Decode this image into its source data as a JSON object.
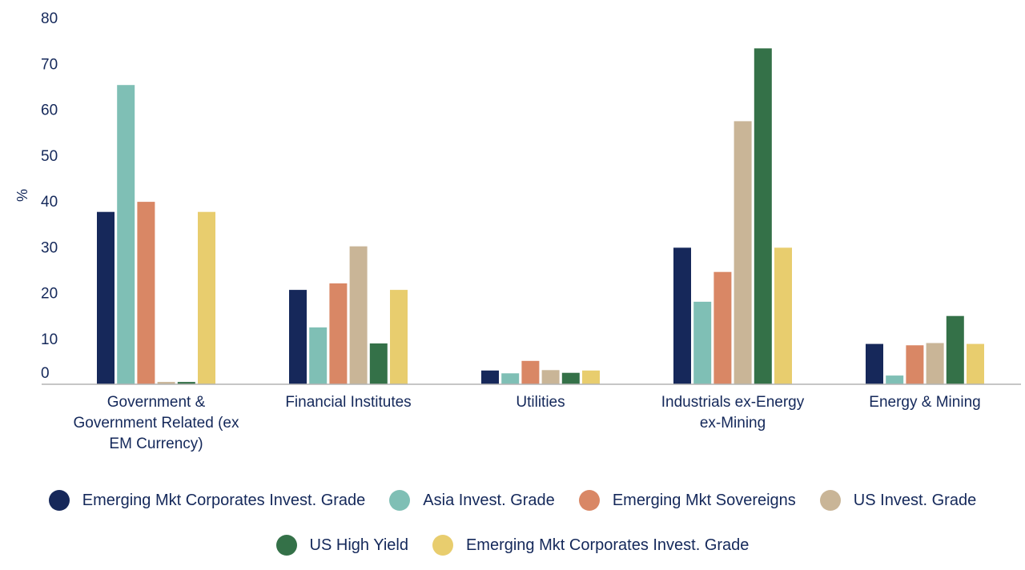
{
  "chart_data": {
    "type": "bar",
    "title": "",
    "xlabel": "",
    "ylabel": "%",
    "ylim": [
      0,
      80
    ],
    "yticks": [
      0,
      10,
      20,
      30,
      40,
      50,
      60,
      70,
      80
    ],
    "grid": false,
    "legend_position": "bottom",
    "categories": [
      "Government & Government Related (ex EM Currency)",
      "Financial Institutes",
      "Utilities",
      "Industrials ex-Energy ex-Mining",
      "Energy & Mining"
    ],
    "series": [
      {
        "name": "Emerging Mkt Corporates Invest. Grade",
        "color": "#16285a",
        "values": [
          37.6,
          20.6,
          3.0,
          29.8,
          8.8
        ]
      },
      {
        "name": "Asia Invest. Grade",
        "color": "#7fbfb5",
        "values": [
          65.3,
          12.4,
          2.4,
          18.0,
          1.9
        ]
      },
      {
        "name": "Emerging Mkt Sovereigns",
        "color": "#d98765",
        "values": [
          39.8,
          22.0,
          5.1,
          24.5,
          8.5
        ]
      },
      {
        "name": "US Invest. Grade",
        "color": "#c9b597",
        "values": [
          0.5,
          30.1,
          3.1,
          57.4,
          9.0
        ]
      },
      {
        "name": "US High Yield",
        "color": "#347148",
        "values": [
          0.5,
          8.9,
          2.5,
          73.3,
          14.9
        ]
      },
      {
        "name": "Emerging Mkt Corporates Invest. Grade",
        "color": "#e8cd6e",
        "values": [
          37.6,
          20.6,
          3.0,
          29.8,
          8.8
        ]
      }
    ]
  }
}
